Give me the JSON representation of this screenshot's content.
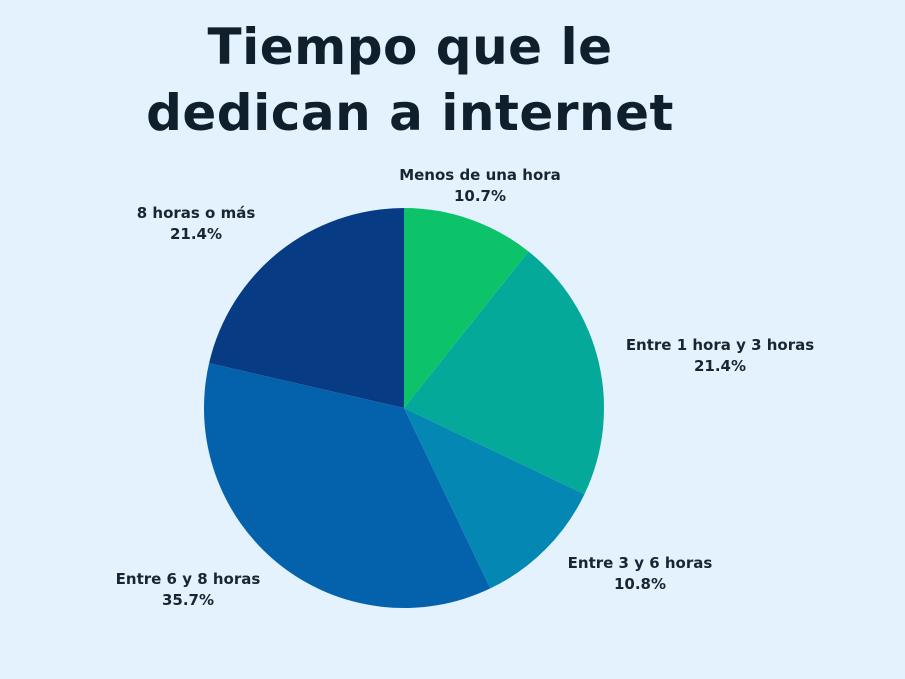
{
  "chart_data": {
    "type": "pie",
    "title_lines": [
      "Tiempo que le",
      "dedican a internet"
    ],
    "slices": [
      {
        "label": "Menos de una hora",
        "value": 10.7,
        "value_label": "10.7%",
        "color": "#0dc36a"
      },
      {
        "label": "Entre 1 hora y 3 horas",
        "value": 21.4,
        "value_label": "21.4%",
        "color": "#05a99a"
      },
      {
        "label": "Entre 3 y 6 horas",
        "value": 10.8,
        "value_label": "10.8%",
        "color": "#0587b4"
      },
      {
        "label": "Entre 6 y 8 horas",
        "value": 35.7,
        "value_label": "35.7%",
        "color": "#0462ac"
      },
      {
        "label": "8 horas o más",
        "value": 21.4,
        "value_label": "21.4%",
        "color": "#073c84"
      }
    ],
    "start_position": "top",
    "direction": "clockwise"
  }
}
